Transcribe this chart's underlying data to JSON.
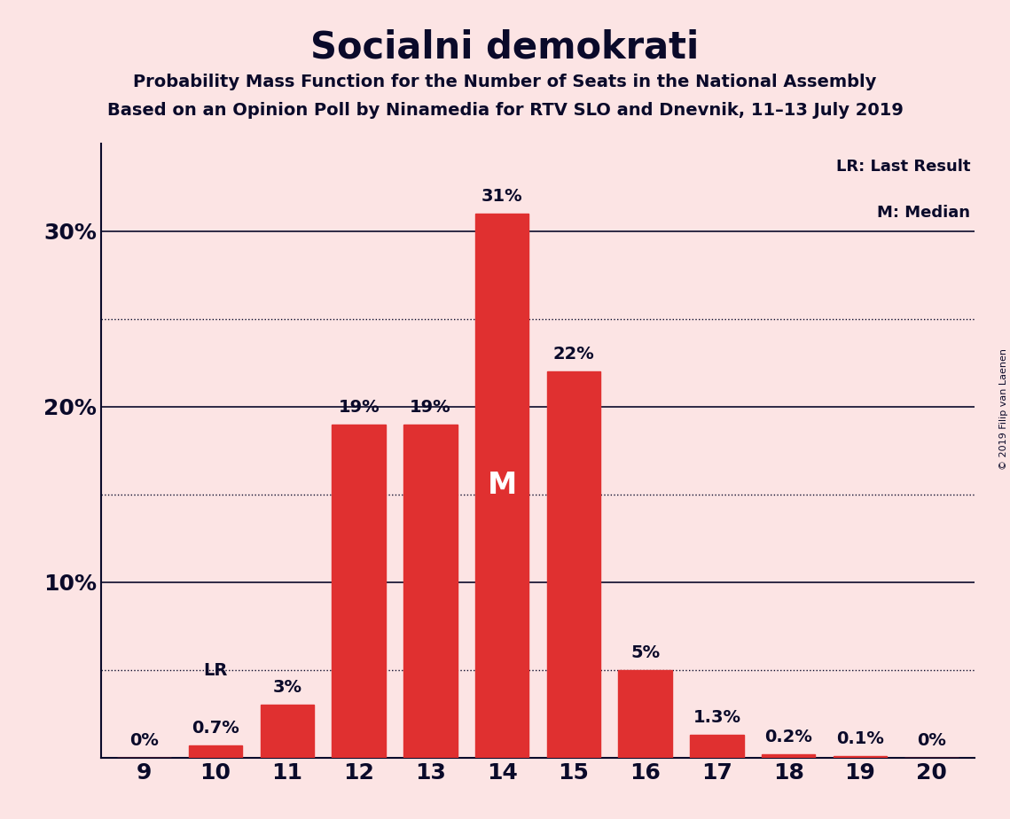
{
  "title": "Socialni demokrati",
  "subtitle1": "Probability Mass Function for the Number of Seats in the National Assembly",
  "subtitle2": "Based on an Opinion Poll by Ninamedia for RTV SLO and Dnevnik, 11–13 July 2019",
  "copyright": "© 2019 Filip van Laenen",
  "categories": [
    9,
    10,
    11,
    12,
    13,
    14,
    15,
    16,
    17,
    18,
    19,
    20
  ],
  "values": [
    0.0,
    0.7,
    3.0,
    19.0,
    19.0,
    31.0,
    22.0,
    5.0,
    1.3,
    0.2,
    0.1,
    0.0
  ],
  "labels": [
    "0%",
    "0.7%",
    "3%",
    "19%",
    "19%",
    "31%",
    "22%",
    "5%",
    "1.3%",
    "0.2%",
    "0.1%",
    "0%"
  ],
  "bar_color": "#e03030",
  "background_color": "#fce4e4",
  "title_color": "#0a0a2a",
  "axis_color": "#0a0a2a",
  "grid_color": "#0a0a2a",
  "label_color": "#0a0a2a",
  "median_bar": 14,
  "median_label": "M",
  "lr_bar": 10,
  "lr_label": "LR",
  "yticks": [
    10,
    20,
    30
  ],
  "ylim": [
    0,
    35
  ],
  "dotted_grid_values": [
    5,
    15,
    25
  ],
  "solid_grid_values": [
    10,
    20,
    30
  ],
  "legend_lr": "LR: Last Result",
  "legend_m": "M: Median"
}
